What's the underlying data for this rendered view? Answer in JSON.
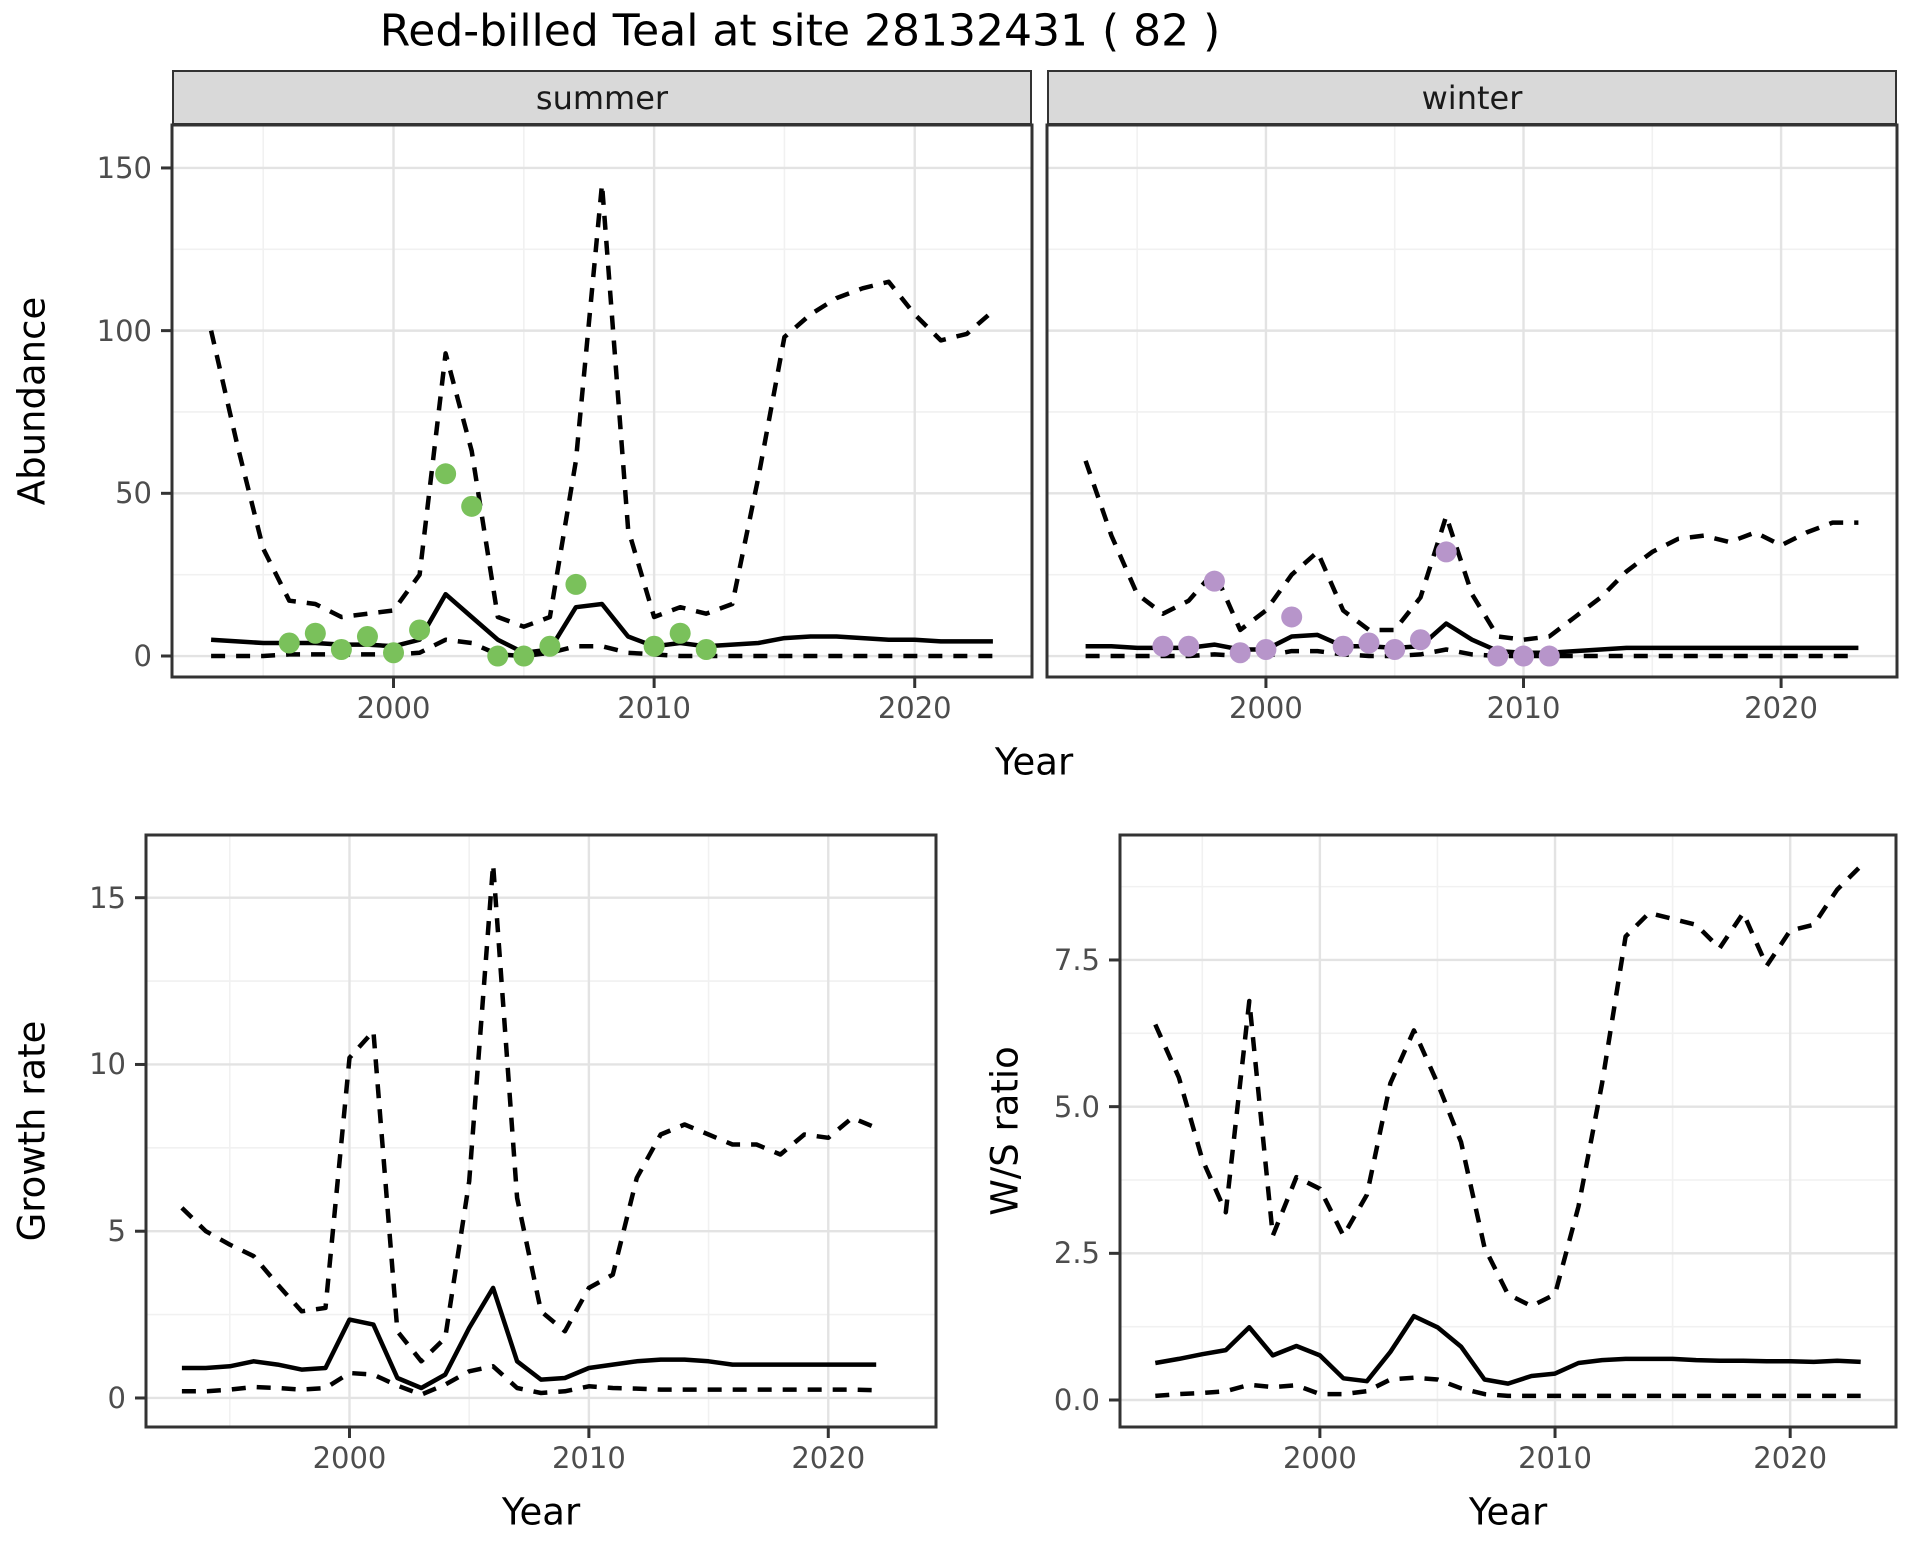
{
  "title": "Red-billed Teal at site 28132431 ( 82 )",
  "colors": {
    "summer_points": "#7ac15b",
    "winter_points": "#b795ca",
    "line": "#000000",
    "grid_major": "#e3e3e3",
    "grid_minor": "#f1f1f1",
    "panel_border": "#333333",
    "tick": "#333333",
    "tick_text": "#4d4d4d",
    "strip_bg": "#d9d9d9"
  },
  "axis_titles": {
    "abundance": "Abundance",
    "growth": "Growth rate",
    "ws": "W/S ratio",
    "x": "Year"
  },
  "chart_data": [
    {
      "type": "line",
      "facet": "summer",
      "ylabel": "Abundance",
      "xlabel": "Year",
      "xlim": [
        1991.5,
        2024.5
      ],
      "ylim": [
        -6.45,
        163.2
      ],
      "xticks": [
        2000,
        2010,
        2020
      ],
      "xtick_labels": [
        "2000",
        "2010",
        "2020"
      ],
      "yticks": [
        0,
        50,
        100,
        150
      ],
      "ytick_labels": [
        "0",
        "50",
        "100",
        "150"
      ],
      "show_y_axis": true,
      "grid": {
        "x_major": [
          2000,
          2010,
          2020
        ],
        "x_minor": [
          1995,
          2005,
          2015
        ],
        "y_major": [
          0,
          50,
          100,
          150
        ],
        "y_minor": [
          25,
          75,
          125
        ]
      },
      "years": [
        1993,
        1994,
        1995,
        1996,
        1997,
        1998,
        1999,
        2000,
        2001,
        2002,
        2003,
        2004,
        2005,
        2006,
        2007,
        2008,
        2009,
        2010,
        2011,
        2012,
        2013,
        2014,
        2015,
        2016,
        2017,
        2018,
        2019,
        2020,
        2021,
        2022,
        2023
      ],
      "series": {
        "median": [
          5,
          4.5,
          4,
          4,
          4,
          3.5,
          3.5,
          3,
          5,
          19,
          12,
          5,
          1,
          2,
          15,
          16,
          6,
          3,
          4,
          3,
          3.5,
          4,
          5.5,
          6,
          6,
          5.5,
          5,
          5,
          4.5,
          4.5,
          4.5
        ],
        "upper": [
          100,
          65,
          33,
          17,
          16,
          12,
          13,
          14,
          25,
          93,
          63,
          12,
          9,
          12,
          60,
          145,
          39,
          12,
          15,
          13,
          16,
          55,
          98,
          105,
          110,
          113,
          115,
          105,
          97,
          99,
          106
        ],
        "lower": [
          0,
          0,
          0,
          0.5,
          0.5,
          0.5,
          0.5,
          0.5,
          1,
          5,
          4,
          0.5,
          0,
          1,
          3,
          3,
          1,
          0.5,
          0,
          0,
          0,
          0,
          0,
          0,
          0,
          0,
          0,
          0,
          0,
          0,
          0
        ]
      },
      "points": [
        [
          1996,
          4
        ],
        [
          1997,
          7
        ],
        [
          1998,
          2
        ],
        [
          1999,
          6
        ],
        [
          2000,
          1
        ],
        [
          2001,
          8
        ],
        [
          2002,
          56
        ],
        [
          2003,
          46
        ],
        [
          2004,
          0
        ],
        [
          2005,
          0
        ],
        [
          2006,
          3
        ],
        [
          2007,
          22
        ],
        [
          2010,
          3
        ],
        [
          2011,
          7
        ],
        [
          2012,
          2
        ]
      ],
      "point_color": "#7ac15b"
    },
    {
      "type": "line",
      "facet": "winter",
      "ylabel": "Abundance",
      "xlabel": "Year",
      "xlim": [
        1991.5,
        2024.5
      ],
      "ylim": [
        -6.45,
        163.2
      ],
      "xticks": [
        2000,
        2010,
        2020
      ],
      "xtick_labels": [
        "2000",
        "2010",
        "2020"
      ],
      "yticks": [
        0,
        50,
        100,
        150
      ],
      "ytick_labels": [
        "0",
        "50",
        "100",
        "150"
      ],
      "show_y_axis": false,
      "grid": {
        "x_major": [
          2000,
          2010,
          2020
        ],
        "x_minor": [
          1995,
          2005,
          2015
        ],
        "y_major": [
          0,
          50,
          100,
          150
        ],
        "y_minor": [
          25,
          75,
          125
        ]
      },
      "years": [
        1993,
        1994,
        1995,
        1996,
        1997,
        1998,
        1999,
        2000,
        2001,
        2002,
        2003,
        2004,
        2005,
        2006,
        2007,
        2008,
        2009,
        2010,
        2011,
        2012,
        2013,
        2014,
        2015,
        2016,
        2017,
        2018,
        2019,
        2020,
        2021,
        2022,
        2023
      ],
      "series": {
        "median": [
          3,
          3,
          2.5,
          2.5,
          2.5,
          3.5,
          2,
          2,
          6,
          6.5,
          3,
          3,
          2.5,
          3,
          10,
          5,
          1.5,
          1,
          1,
          1.5,
          2,
          2.5,
          2.5,
          2.5,
          2.5,
          2.5,
          2.5,
          2.5,
          2.5,
          2.5,
          2.5
        ],
        "upper": [
          60,
          37,
          19,
          13,
          17,
          26,
          8,
          14,
          25,
          32,
          14,
          8,
          8,
          18,
          43,
          19,
          6,
          5,
          6,
          12,
          18,
          26,
          32,
          36,
          37,
          35,
          38,
          34,
          38,
          41,
          41
        ],
        "lower": [
          0,
          0,
          0,
          0,
          0,
          0.5,
          0,
          0,
          1.5,
          1.5,
          0.5,
          0,
          0,
          0.5,
          2,
          0.5,
          0,
          0,
          0,
          0,
          0,
          0,
          0,
          0,
          0,
          0,
          0,
          0,
          0,
          0,
          0
        ]
      },
      "points": [
        [
          1996,
          3
        ],
        [
          1997,
          3
        ],
        [
          1998,
          23
        ],
        [
          1999,
          1
        ],
        [
          2000,
          2
        ],
        [
          2001,
          12
        ],
        [
          2003,
          3
        ],
        [
          2004,
          4
        ],
        [
          2005,
          2
        ],
        [
          2006,
          5
        ],
        [
          2007,
          32
        ],
        [
          2009,
          0
        ],
        [
          2010,
          0
        ],
        [
          2011,
          0
        ]
      ],
      "point_color": "#b795ca"
    },
    {
      "type": "line",
      "facet": null,
      "ylabel": "Growth rate",
      "xlabel": "Year",
      "xlim": [
        1991.5,
        2024.5
      ],
      "ylim": [
        -0.87,
        16.88
      ],
      "xticks": [
        2000,
        2010,
        2020
      ],
      "xtick_labels": [
        "2000",
        "2010",
        "2020"
      ],
      "yticks": [
        0,
        5,
        10,
        15
      ],
      "ytick_labels": [
        "0",
        "5",
        "10",
        "15"
      ],
      "show_y_axis": true,
      "grid": {
        "x_major": [
          2000,
          2010,
          2020
        ],
        "x_minor": [
          1995,
          2005,
          2015
        ],
        "y_major": [
          0,
          5,
          10,
          15
        ],
        "y_minor": [
          2.5,
          7.5,
          12.5
        ]
      },
      "years": [
        1993,
        1994,
        1995,
        1996,
        1997,
        1998,
        1999,
        2000,
        2001,
        2002,
        2003,
        2004,
        2005,
        2006,
        2007,
        2008,
        2009,
        2010,
        2011,
        2012,
        2013,
        2014,
        2015,
        2016,
        2017,
        2018,
        2019,
        2020,
        2021,
        2022
      ],
      "series": {
        "median": [
          0.9,
          0.9,
          0.95,
          1.1,
          1.0,
          0.85,
          0.9,
          2.35,
          2.2,
          0.6,
          0.3,
          0.7,
          2.1,
          3.3,
          1.1,
          0.55,
          0.6,
          0.9,
          1.0,
          1.1,
          1.15,
          1.15,
          1.1,
          1.0,
          1.0,
          1.0,
          1.0,
          1.0,
          1.0,
          1.0
        ],
        "upper": [
          5.7,
          5.0,
          4.6,
          4.25,
          3.4,
          2.6,
          2.7,
          10.2,
          11.0,
          2.0,
          1.1,
          1.8,
          6.5,
          16.0,
          6.0,
          2.6,
          2.0,
          3.3,
          3.7,
          6.6,
          7.9,
          8.2,
          7.9,
          7.6,
          7.6,
          7.3,
          7.9,
          7.8,
          8.4,
          8.1
        ],
        "lower": [
          0.2,
          0.2,
          0.25,
          0.33,
          0.3,
          0.25,
          0.3,
          0.75,
          0.7,
          0.37,
          0.1,
          0.4,
          0.8,
          0.95,
          0.3,
          0.15,
          0.2,
          0.35,
          0.3,
          0.28,
          0.25,
          0.25,
          0.25,
          0.25,
          0.25,
          0.25,
          0.25,
          0.25,
          0.25,
          0.23
        ]
      },
      "points": [],
      "point_color": null
    },
    {
      "type": "line",
      "facet": null,
      "ylabel": "W/S ratio",
      "xlabel": "Year",
      "xlim": [
        1991.5,
        2024.5
      ],
      "ylim": [
        -0.46,
        9.63
      ],
      "xticks": [
        2000,
        2010,
        2020
      ],
      "xtick_labels": [
        "2000",
        "2010",
        "2020"
      ],
      "yticks": [
        0,
        2.5,
        5,
        7.5
      ],
      "ytick_labels": [
        "0.0",
        "2.5",
        "5.0",
        "7.5"
      ],
      "show_y_axis": true,
      "grid": {
        "x_major": [
          2000,
          2010,
          2020
        ],
        "x_minor": [
          1995,
          2005,
          2015
        ],
        "y_major": [
          0,
          2.5,
          5,
          7.5
        ],
        "y_minor": [
          1.25,
          3.75,
          6.25,
          8.75
        ]
      },
      "years": [
        1993,
        1994,
        1995,
        1996,
        1997,
        1998,
        1999,
        2000,
        2001,
        2002,
        2003,
        2004,
        2005,
        2006,
        2007,
        2008,
        2009,
        2010,
        2011,
        2012,
        2013,
        2014,
        2015,
        2016,
        2017,
        2018,
        2019,
        2020,
        2021,
        2022,
        2023
      ],
      "series": {
        "median": [
          0.63,
          0.7,
          0.78,
          0.85,
          1.24,
          0.76,
          0.92,
          0.76,
          0.37,
          0.32,
          0.82,
          1.43,
          1.24,
          0.91,
          0.35,
          0.28,
          0.41,
          0.45,
          0.63,
          0.68,
          0.7,
          0.7,
          0.7,
          0.68,
          0.67,
          0.67,
          0.66,
          0.66,
          0.65,
          0.67,
          0.65
        ],
        "upper": [
          6.4,
          5.5,
          4.1,
          3.2,
          6.8,
          2.8,
          3.8,
          3.6,
          2.8,
          3.5,
          5.4,
          6.3,
          5.4,
          4.4,
          2.6,
          1.8,
          1.6,
          1.8,
          3.3,
          5.4,
          7.9,
          8.3,
          8.2,
          8.1,
          7.7,
          8.3,
          7.4,
          8.0,
          8.1,
          8.7,
          9.1
        ],
        "lower": [
          0.07,
          0.1,
          0.12,
          0.15,
          0.26,
          0.22,
          0.25,
          0.1,
          0.1,
          0.15,
          0.35,
          0.38,
          0.35,
          0.2,
          0.1,
          0.07,
          0.07,
          0.07,
          0.07,
          0.07,
          0.07,
          0.07,
          0.07,
          0.07,
          0.07,
          0.07,
          0.07,
          0.07,
          0.07,
          0.07,
          0.07
        ]
      },
      "points": [],
      "point_color": null
    }
  ]
}
